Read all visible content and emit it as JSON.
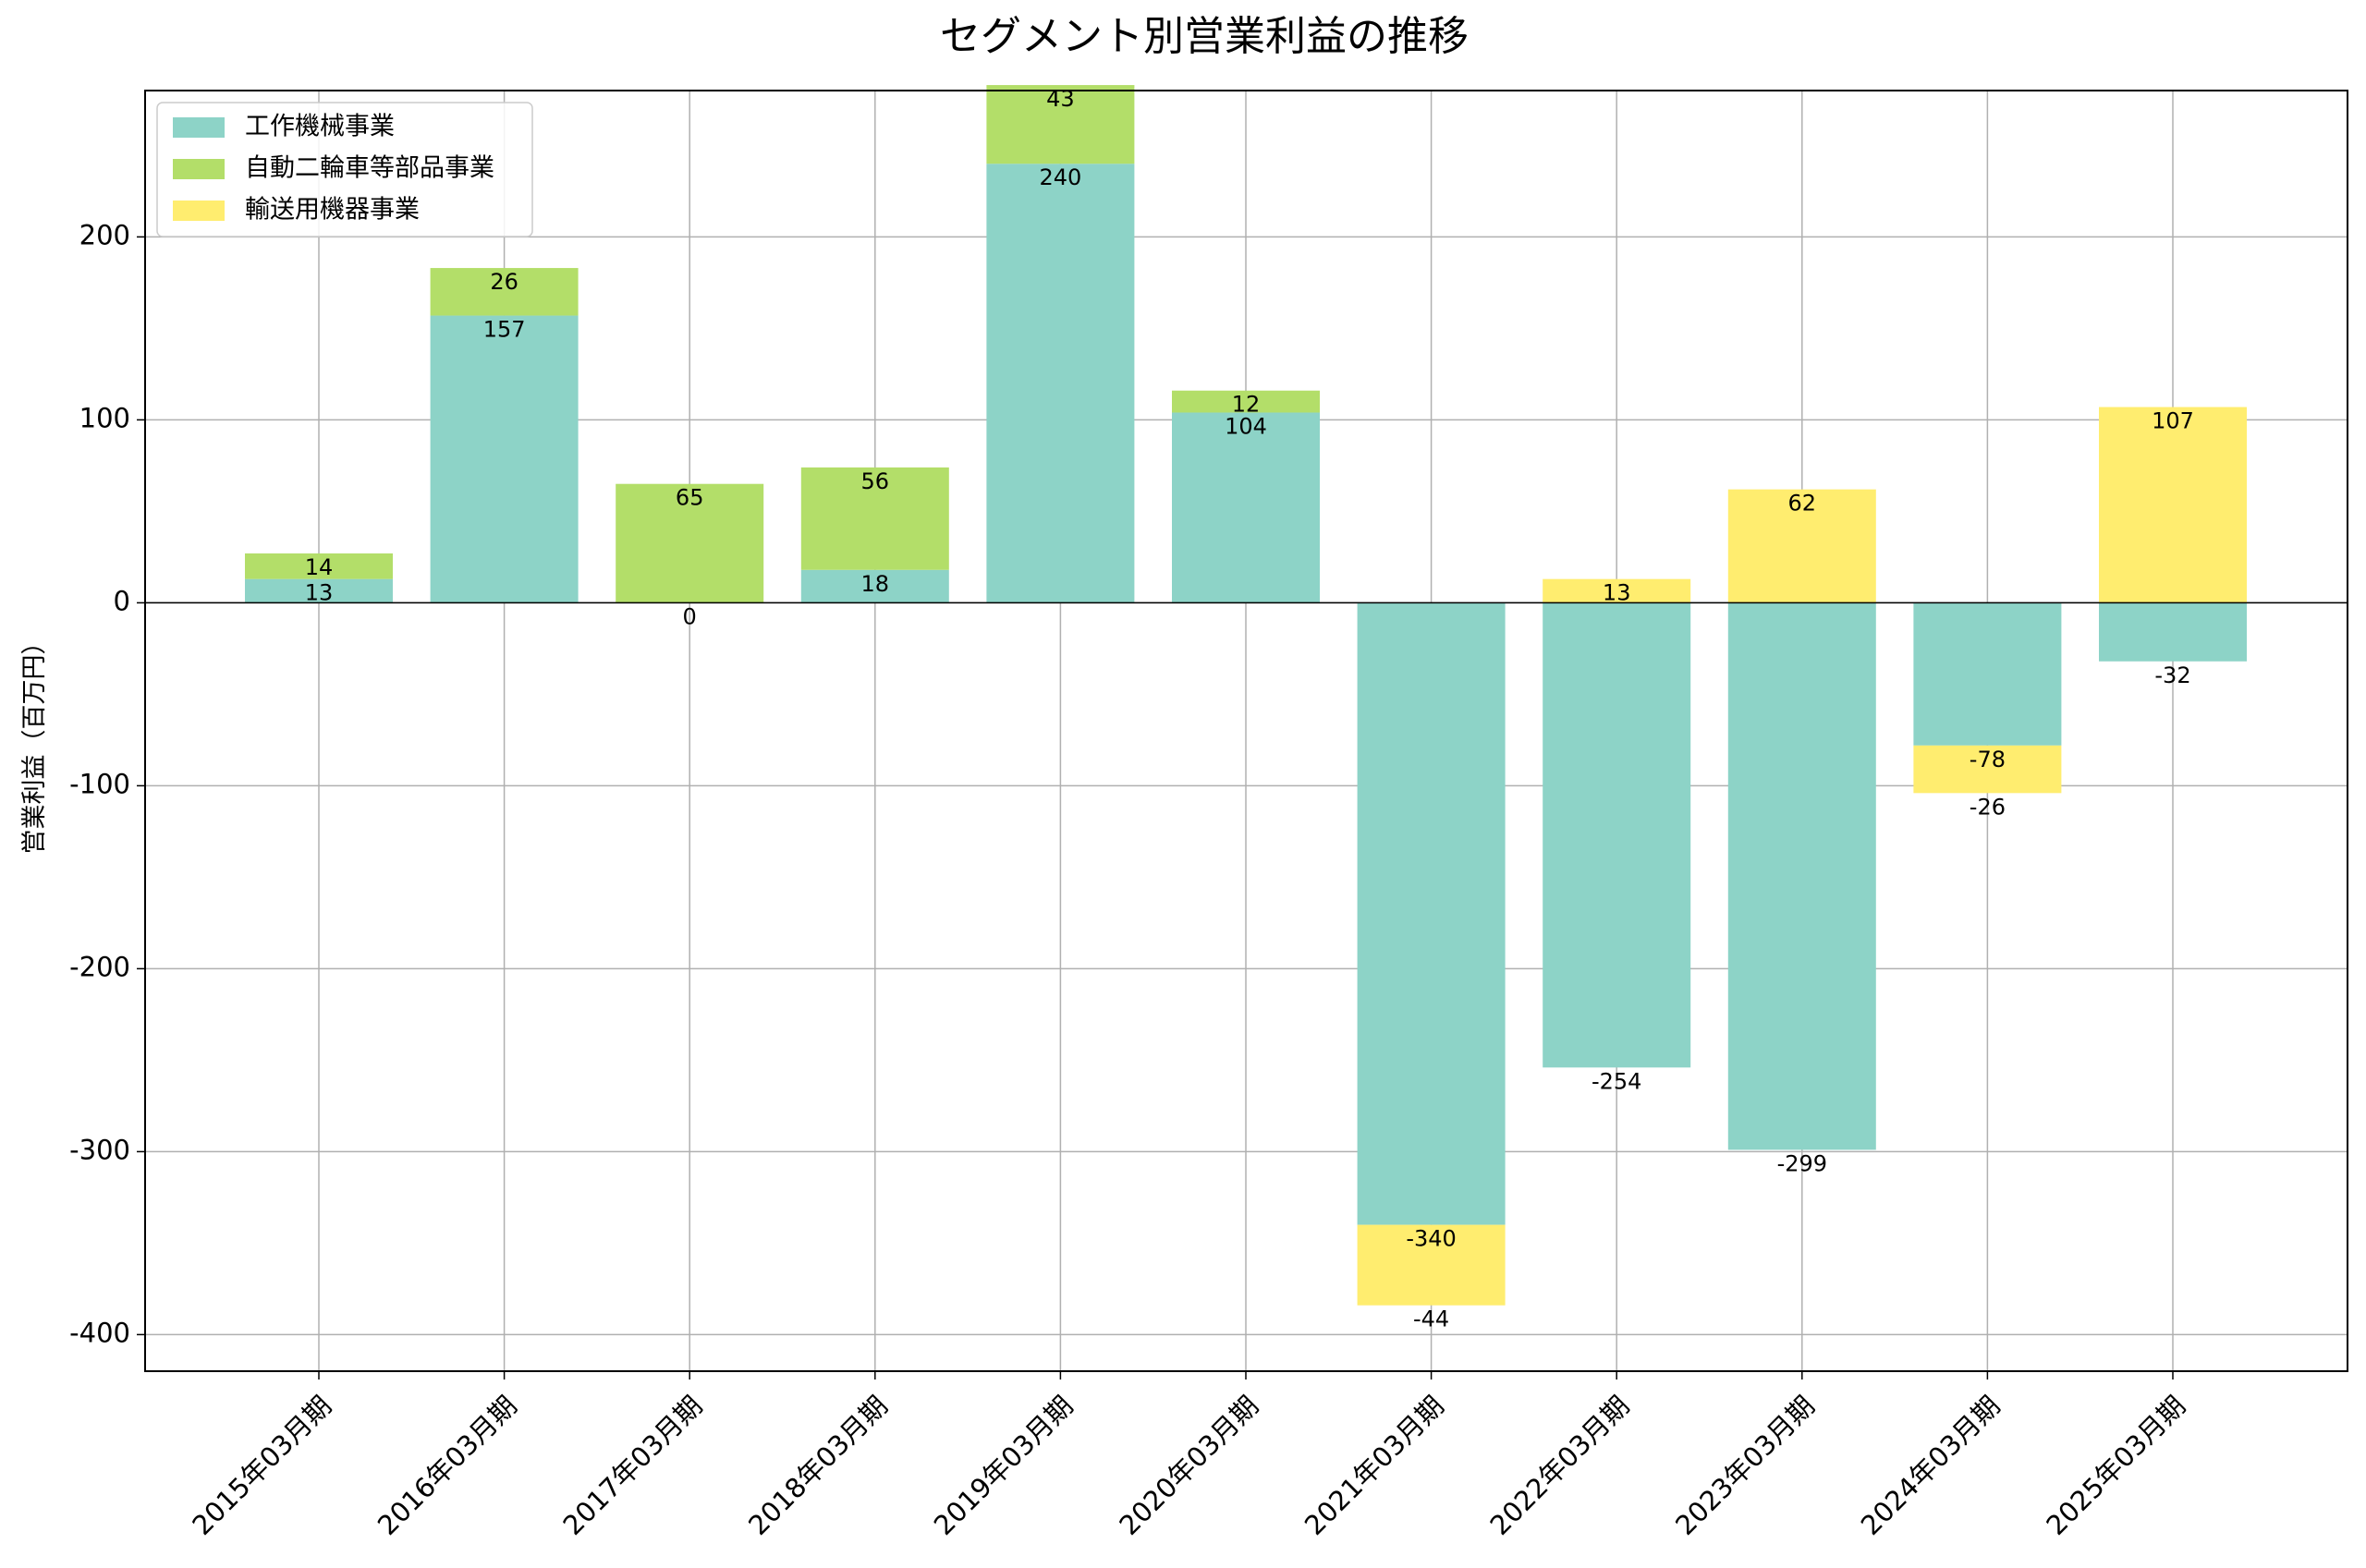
{
  "chart_data": {
    "type": "bar",
    "stacked": true,
    "title": "セグメント別営業利益の推移",
    "xlabel": "",
    "ylabel": "営業利益（百万円）",
    "ylim": [
      -420,
      280
    ],
    "yticks": [
      -400,
      -300,
      -200,
      -100,
      0,
      100,
      200
    ],
    "grid": true,
    "legend_position": "top-left",
    "categories": [
      "2015年03月期",
      "2016年03月期",
      "2017年03月期",
      "2018年03月期",
      "2019年03月期",
      "2020年03月期",
      "2021年03月期",
      "2022年03月期",
      "2023年03月期",
      "2024年03月期",
      "2025年03月期"
    ],
    "series": [
      {
        "name": "工作機械事業",
        "color": "#8dd3c7",
        "values": [
          13,
          157,
          0,
          18,
          240,
          104,
          -340,
          -254,
          -299,
          -78,
          -32
        ]
      },
      {
        "name": "自動二輪車等部品事業",
        "color": "#b3de69",
        "values": [
          14,
          26,
          65,
          56,
          43,
          12,
          null,
          null,
          null,
          null,
          null
        ]
      },
      {
        "name": "輸送用機器事業",
        "color": "#ffed6f",
        "values": [
          null,
          null,
          null,
          null,
          null,
          null,
          -44,
          13,
          62,
          -26,
          107
        ]
      }
    ]
  }
}
